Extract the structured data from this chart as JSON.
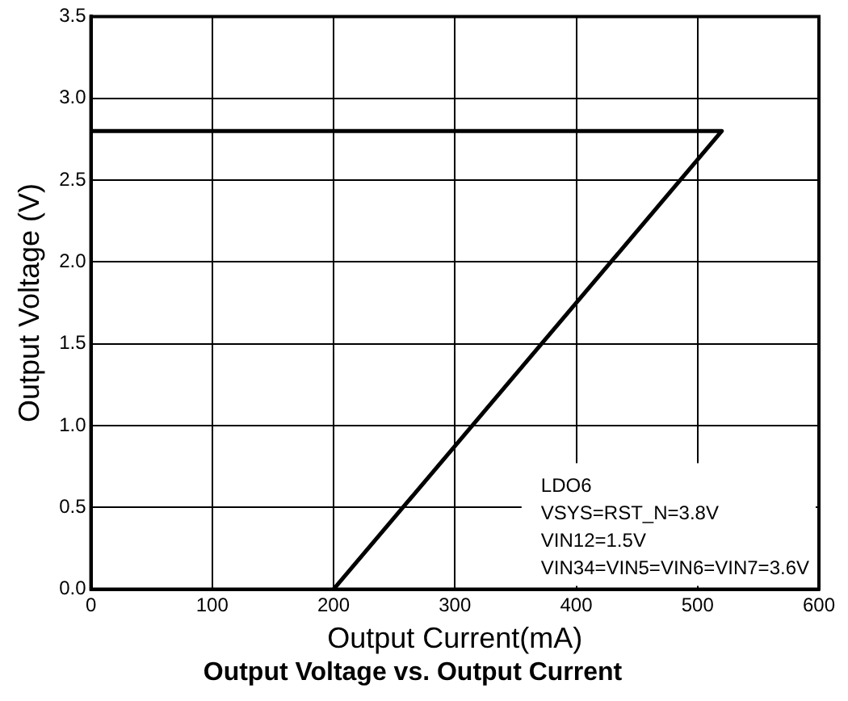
{
  "chart_data": {
    "type": "line",
    "title": "Output Voltage vs. Output Current",
    "xlabel": "Output Current(mA)",
    "ylabel": "Output Voltage (V)",
    "series": [
      {
        "color": "#000000",
        "x": [
          0,
          520,
          200
        ],
        "values": [
          2.8,
          2.8,
          0
        ]
      }
    ],
    "xlim": [
      0,
      600
    ],
    "xticks": [
      0,
      100,
      200,
      300,
      400,
      500,
      600
    ],
    "ylim": [
      0,
      3.5
    ],
    "yticks": [
      {
        "value": 0,
        "label": "0.0"
      },
      {
        "value": 0.5,
        "label": "0.5"
      },
      {
        "value": 1,
        "label": "1.0"
      },
      {
        "value": 1.5,
        "label": "1.5"
      },
      {
        "value": 2,
        "label": "2.0"
      },
      {
        "value": 2.5,
        "label": "2.5"
      },
      {
        "value": 3,
        "label": "3.0"
      },
      {
        "value": 3.5,
        "label": "3.5"
      }
    ],
    "grid": true,
    "legend": false,
    "marker": "none",
    "line_style": "solid",
    "annotations": [
      "LDO6",
      "VSYS=RST_N=3.8V",
      "VIN12=1.5V",
      "VIN34=VIN5=VIN6=VIN7=3.6V"
    ]
  }
}
